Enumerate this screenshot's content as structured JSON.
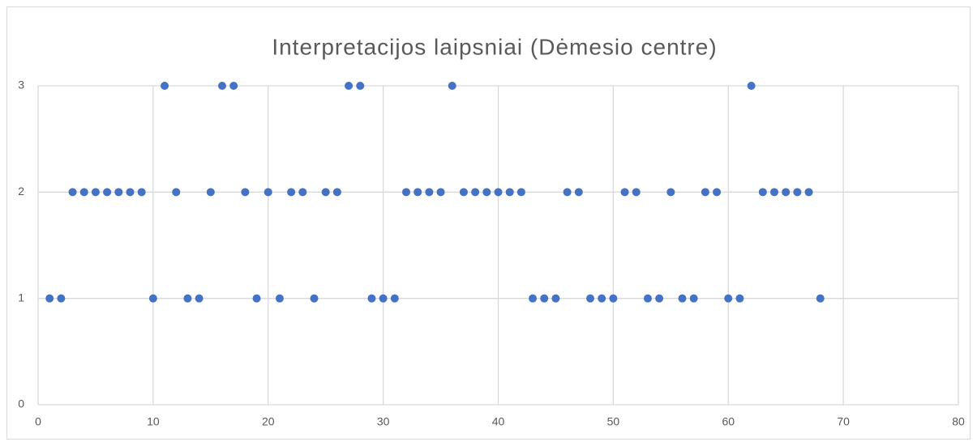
{
  "chart_data": {
    "type": "scatter",
    "title": "Interpretacijos laipsniai (Dėmesio centre)",
    "color": "#4472c4",
    "grid": true,
    "xlim": [
      0,
      80
    ],
    "xticks": [
      0,
      10,
      20,
      30,
      40,
      50,
      60,
      70,
      80
    ],
    "ylim": [
      0,
      3
    ],
    "yticks": [
      0,
      1,
      2,
      3
    ],
    "x": [
      1,
      2,
      3,
      4,
      5,
      6,
      7,
      8,
      9,
      10,
      11,
      12,
      13,
      14,
      15,
      16,
      17,
      18,
      19,
      20,
      21,
      22,
      23,
      24,
      25,
      26,
      27,
      28,
      29,
      30,
      31,
      32,
      33,
      34,
      35,
      36,
      37,
      38,
      39,
      40,
      41,
      42,
      43,
      44,
      45,
      46,
      47,
      48,
      49,
      50,
      51,
      52,
      53,
      54,
      55,
      56,
      57,
      58,
      59,
      60,
      61,
      62,
      63,
      64,
      65,
      66,
      67,
      68
    ],
    "y": [
      1,
      1,
      2,
      2,
      2,
      2,
      2,
      2,
      2,
      1,
      3,
      2,
      1,
      1,
      2,
      3,
      3,
      2,
      1,
      2,
      1,
      2,
      2,
      1,
      2,
      2,
      3,
      3,
      1,
      1,
      1,
      2,
      2,
      2,
      2,
      3,
      2,
      2,
      2,
      2,
      2,
      2,
      1,
      1,
      1,
      2,
      2,
      1,
      1,
      1,
      2,
      2,
      1,
      1,
      2,
      1,
      1,
      2,
      2,
      1,
      1,
      3,
      2,
      2,
      2,
      2,
      2,
      1
    ]
  }
}
